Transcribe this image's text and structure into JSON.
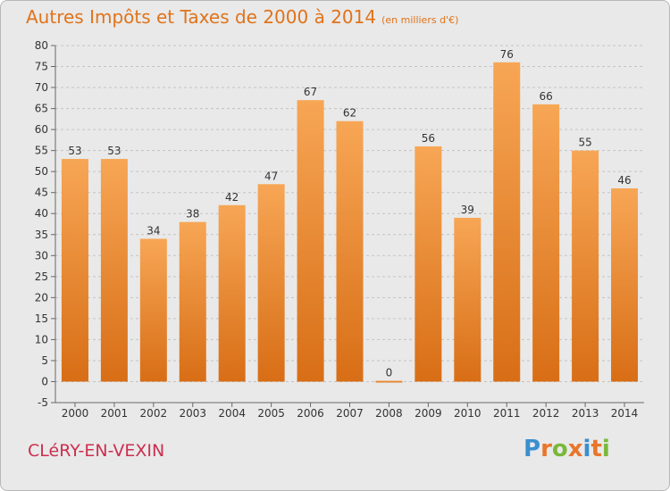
{
  "title": "Autres Impôts et Taxes de 2000 à 2014",
  "unit": "(en milliers d'€)",
  "location": "CLéRY-EN-VEXIN",
  "logo": {
    "letters": [
      "P",
      "r",
      "o",
      "x",
      "i",
      "t",
      "i"
    ],
    "colors": [
      "#3a8fd0",
      "#e8762a",
      "#7ab83a",
      "#e8762a",
      "#3a8fd0",
      "#e8762a",
      "#7ab83a"
    ]
  },
  "colors": {
    "bar_top": "#f7a655",
    "bar_bottom": "#d86e16",
    "title": "#e0731a",
    "location": "#cc2e4e",
    "grid": "#c4c4c4"
  },
  "chart_data": {
    "type": "bar",
    "categories": [
      "2000",
      "2001",
      "2002",
      "2003",
      "2004",
      "2005",
      "2006",
      "2007",
      "2008",
      "2009",
      "2010",
      "2011",
      "2012",
      "2013",
      "2014"
    ],
    "values": [
      53,
      53,
      34,
      38,
      42,
      47,
      67,
      62,
      0,
      56,
      39,
      76,
      66,
      55,
      46
    ],
    "ylim": [
      -5,
      80
    ],
    "yticks": [
      -5,
      0,
      5,
      10,
      15,
      20,
      25,
      30,
      35,
      40,
      45,
      50,
      55,
      60,
      65,
      70,
      75,
      80
    ],
    "grid": true
  }
}
